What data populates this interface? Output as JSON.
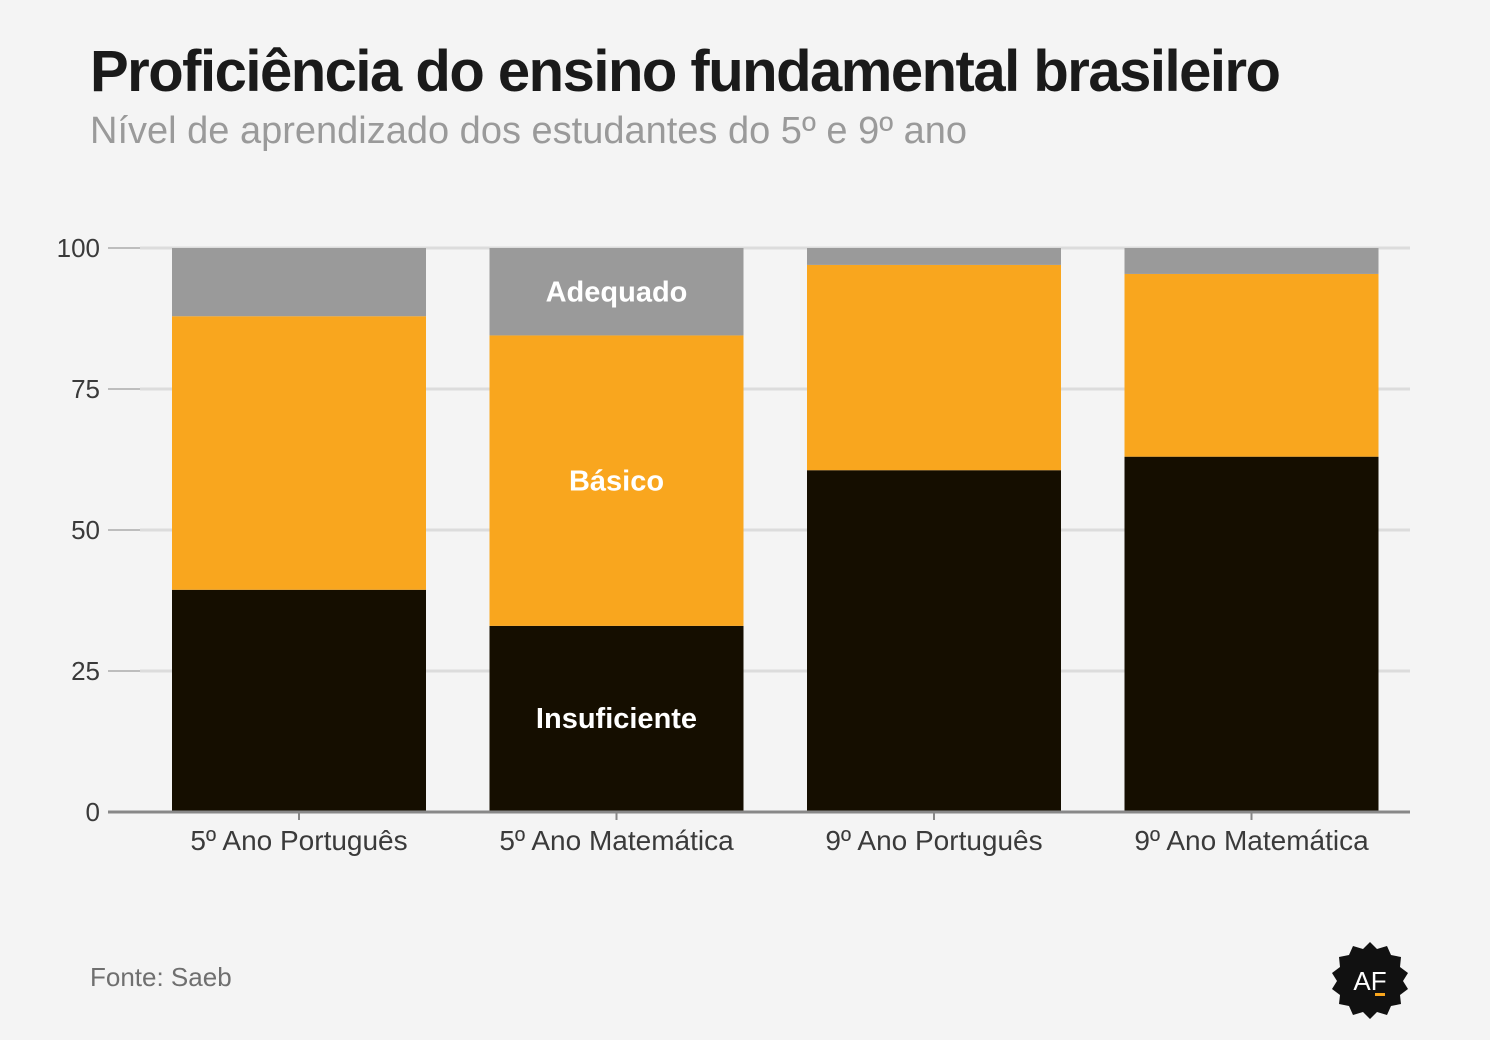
{
  "title": "Proficiência do ensino fundamental brasileiro",
  "subtitle": "Nível de aprendizado dos estudantes do 5º e 9º ano",
  "source": "Fonte: Saeb",
  "logo_text": "AF",
  "colors": {
    "Insuficiente": "#150e00",
    "Básico": "#f9a61e",
    "Adequado": "#9a9a9a",
    "background": "#f4f4f4",
    "grid": "#dcdcdc",
    "axis": "#888888"
  },
  "chart_data": {
    "type": "bar",
    "stacked": true,
    "categories": [
      "5º Ano Português",
      "5º Ano Matemática",
      "9º Ano Português",
      "9º Ano Matemática"
    ],
    "series": [
      {
        "name": "Insuficiente",
        "values": [
          39.4,
          33.0,
          60.6,
          63.0
        ]
      },
      {
        "name": "Básico",
        "values": [
          48.5,
          51.5,
          36.4,
          32.4
        ]
      },
      {
        "name": "Adequado",
        "values": [
          12.1,
          15.5,
          3.0,
          4.6
        ]
      }
    ],
    "segment_labels": [
      {
        "text": "Insuficiente",
        "category": "5º Ano Matemática",
        "series": "Insuficiente",
        "text_color": "#ffffff"
      },
      {
        "text": "Básico",
        "category": "5º Ano Matemática",
        "series": "Básico",
        "text_color": "#ffffff"
      },
      {
        "text": "Adequado",
        "category": "5º Ano Matemática",
        "series": "Adequado",
        "text_color": "#ffffff"
      }
    ],
    "ylim": [
      0,
      100
    ],
    "yticks": [
      0,
      25,
      50,
      75,
      100
    ],
    "grid": true,
    "xlabel": "",
    "ylabel": ""
  }
}
